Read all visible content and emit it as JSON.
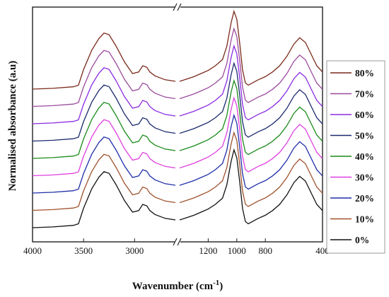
{
  "chart_data": {
    "type": "line",
    "title": "",
    "xlabel": "Wavenumber (cm",
    "xlabel_sup": "-1",
    "xlabel_close": ")",
    "ylabel": "Normalised absorbance (a.u)",
    "x_reversed": true,
    "axis_break": {
      "between": [
        2600,
        1400
      ],
      "marker": "//"
    },
    "x_segments": [
      [
        4000,
        2600
      ],
      [
        1400,
        400
      ]
    ],
    "x_ticks_left": [
      "4000",
      "3500",
      "3000"
    ],
    "x_ticks_right": [
      "1200",
      "1000",
      "800",
      "400"
    ],
    "y_ticks_shown": false,
    "legend_position": "right",
    "legend_order": [
      "80%",
      "70%",
      "60%",
      "50%",
      "40%",
      "30%",
      "20%",
      "10%",
      "0%"
    ],
    "series": [
      {
        "name": "0%",
        "offset": 0,
        "color": "#111111"
      },
      {
        "name": "10%",
        "offset": 1,
        "color": "#a0522d"
      },
      {
        "name": "20%",
        "offset": 2,
        "color": "#1f2ea8"
      },
      {
        "name": "30%",
        "offset": 3,
        "color": "#e040e0"
      },
      {
        "name": "40%",
        "offset": 4,
        "color": "#1a8a1a"
      },
      {
        "name": "50%",
        "offset": 5,
        "color": "#1c2a6e"
      },
      {
        "name": "60%",
        "offset": 6,
        "color": "#8a2be2"
      },
      {
        "name": "70%",
        "offset": 7,
        "color": "#9b4a9b"
      },
      {
        "name": "80%",
        "offset": 8,
        "color": "#7a2a1a"
      }
    ],
    "left_profile": [
      [
        4000,
        0.0
      ],
      [
        3800,
        0.01
      ],
      [
        3600,
        0.03
      ],
      [
        3550,
        0.05
      ],
      [
        3500,
        0.25
      ],
      [
        3420,
        0.5
      ],
      [
        3350,
        0.65
      ],
      [
        3300,
        0.72
      ],
      [
        3250,
        0.7
      ],
      [
        3180,
        0.55
      ],
      [
        3100,
        0.35
      ],
      [
        3020,
        0.2
      ],
      [
        2960,
        0.22
      ],
      [
        2920,
        0.3
      ],
      [
        2880,
        0.28
      ],
      [
        2850,
        0.22
      ],
      [
        2800,
        0.17
      ],
      [
        2700,
        0.12
      ],
      [
        2600,
        0.1
      ]
    ],
    "right_profile": [
      [
        1400,
        0.1
      ],
      [
        1350,
        0.13
      ],
      [
        1300,
        0.16
      ],
      [
        1250,
        0.2
      ],
      [
        1200,
        0.24
      ],
      [
        1150,
        0.3
      ],
      [
        1100,
        0.38
      ],
      [
        1070,
        0.55
      ],
      [
        1040,
        0.85
      ],
      [
        1020,
        1.0
      ],
      [
        1000,
        0.9
      ],
      [
        980,
        0.6
      ],
      [
        960,
        0.25
      ],
      [
        940,
        0.08
      ],
      [
        920,
        0.05
      ],
      [
        900,
        0.07
      ],
      [
        850,
        0.12
      ],
      [
        800,
        0.16
      ],
      [
        750,
        0.22
      ],
      [
        700,
        0.3
      ],
      [
        650,
        0.42
      ],
      [
        600,
        0.58
      ],
      [
        560,
        0.66
      ],
      [
        520,
        0.6
      ],
      [
        480,
        0.45
      ],
      [
        440,
        0.3
      ],
      [
        400,
        0.22
      ]
    ]
  }
}
